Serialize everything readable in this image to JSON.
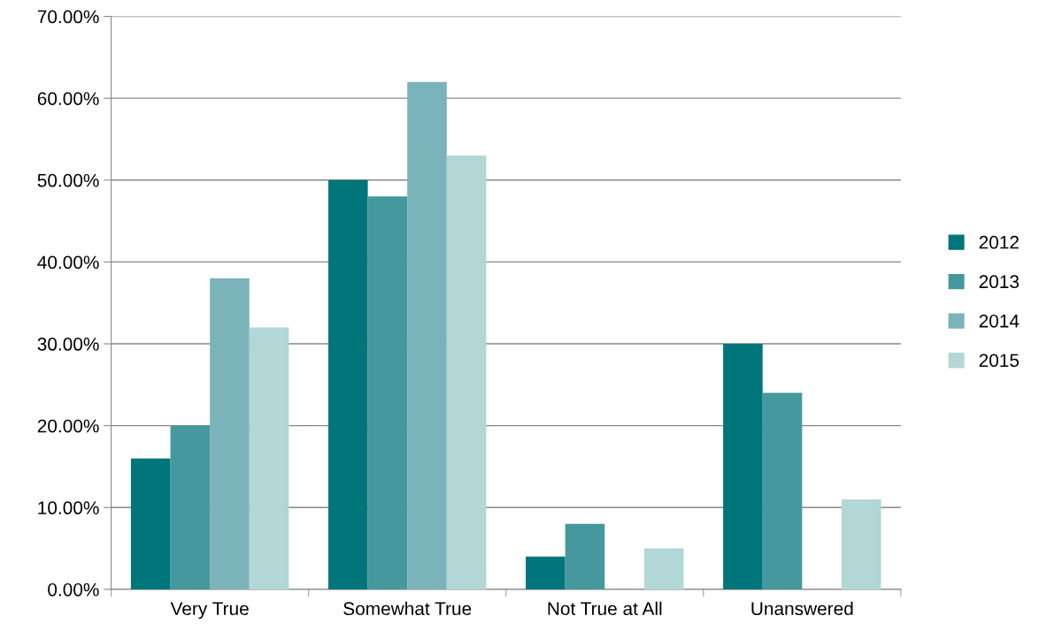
{
  "chart_data": {
    "type": "bar",
    "categories": [
      "Very True",
      "Somewhat True",
      "Not True at All",
      "Unanswered"
    ],
    "series": [
      {
        "name": "2012",
        "color": "#00767a",
        "values": [
          16,
          50,
          4,
          30
        ]
      },
      {
        "name": "2013",
        "color": "#45999e",
        "values": [
          20,
          48,
          8,
          24
        ]
      },
      {
        "name": "2014",
        "color": "#7ab3b9",
        "values": [
          38,
          62,
          null,
          null
        ]
      },
      {
        "name": "2015",
        "color": "#b3d6d6",
        "values": [
          32,
          53,
          5,
          11
        ]
      }
    ],
    "ylim": [
      0,
      70
    ],
    "yticks": [
      {
        "value": 0,
        "label": "0.00%"
      },
      {
        "value": 10,
        "label": "10.00%"
      },
      {
        "value": 20,
        "label": "20.00%"
      },
      {
        "value": 30,
        "label": "30.00%"
      },
      {
        "value": 40,
        "label": "40.00%"
      },
      {
        "value": 50,
        "label": "50.00%"
      },
      {
        "value": 60,
        "label": "60.00%"
      },
      {
        "value": 70,
        "label": "70.00%"
      }
    ],
    "grid": "y",
    "legend": "right"
  }
}
